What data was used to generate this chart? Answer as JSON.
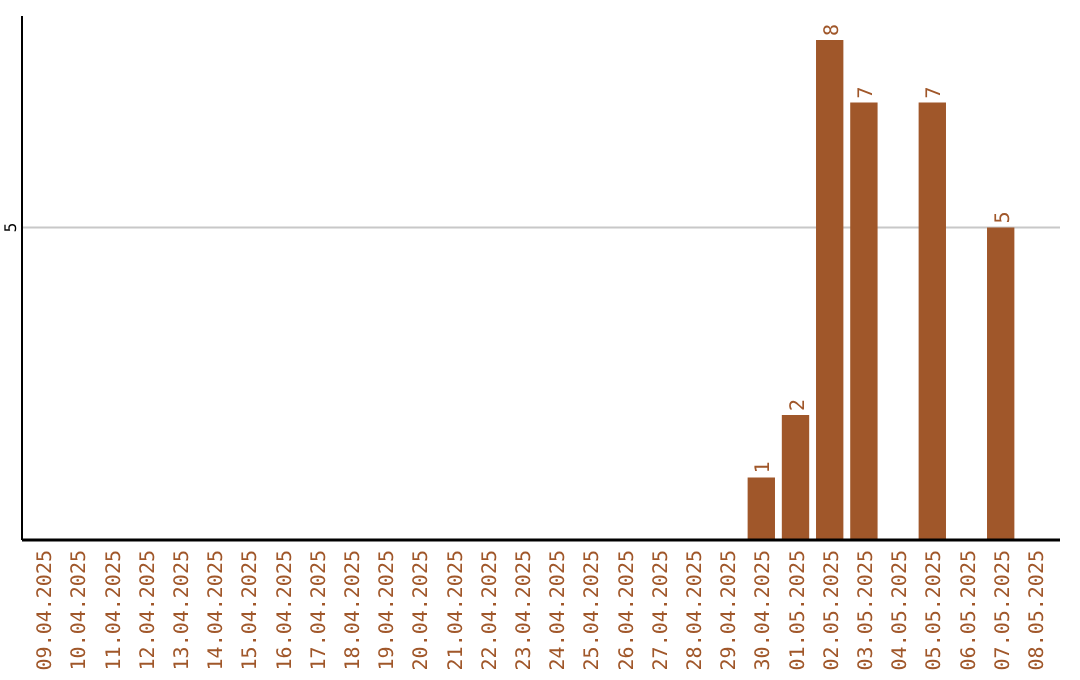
{
  "chart_data": {
    "type": "bar",
    "categories": [
      "09.04.2025",
      "10.04.2025",
      "11.04.2025",
      "12.04.2025",
      "13.04.2025",
      "14.04.2025",
      "15.04.2025",
      "16.04.2025",
      "17.04.2025",
      "18.04.2025",
      "19.04.2025",
      "20.04.2025",
      "21.04.2025",
      "22.04.2025",
      "23.04.2025",
      "24.04.2025",
      "25.04.2025",
      "26.04.2025",
      "27.04.2025",
      "28.04.2025",
      "29.04.2025",
      "30.04.2025",
      "01.05.2025",
      "02.05.2025",
      "03.05.2025",
      "04.05.2025",
      "05.05.2025",
      "06.05.2025",
      "07.05.2025",
      "08.05.2025"
    ],
    "values": [
      null,
      null,
      null,
      null,
      null,
      null,
      null,
      null,
      null,
      null,
      null,
      null,
      null,
      null,
      null,
      null,
      null,
      null,
      null,
      null,
      null,
      1,
      2,
      8,
      7,
      null,
      7,
      null,
      5,
      null
    ],
    "color": "#a0572a",
    "ylim": [
      0,
      8
    ],
    "yticks": [
      5
    ],
    "grid": "y",
    "data_labels": true
  }
}
